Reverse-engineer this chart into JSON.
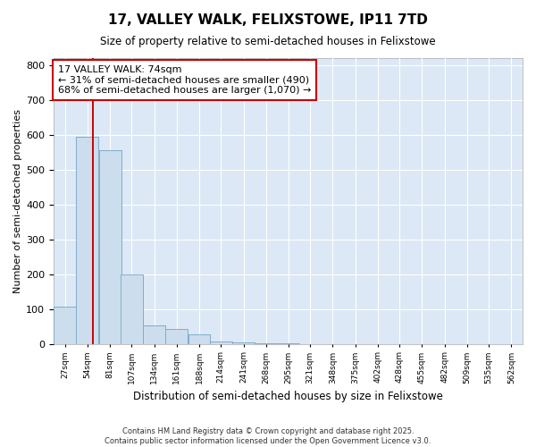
{
  "title": "17, VALLEY WALK, FELIXSTOWE, IP11 7TD",
  "subtitle": "Size of property relative to semi-detached houses in Felixstowe",
  "xlabel": "Distribution of semi-detached houses by size in Felixstowe",
  "ylabel": "Number of semi-detached properties",
  "bar_color": "#ccdded",
  "bar_edge_color": "#7aaac8",
  "background_color": "#dce8f5",
  "grid_color": "#ffffff",
  "fig_background": "#ffffff",
  "ylim": [
    0,
    820
  ],
  "yticks": [
    0,
    100,
    200,
    300,
    400,
    500,
    600,
    700,
    800
  ],
  "bins": [
    27,
    54,
    81,
    107,
    134,
    161,
    188,
    214,
    241,
    268,
    295,
    321,
    348,
    375,
    402,
    428,
    455,
    482,
    509,
    535,
    562
  ],
  "counts": [
    107,
    595,
    557,
    200,
    53,
    42,
    27,
    8,
    5,
    2,
    1,
    0,
    0,
    0,
    0,
    0,
    0,
    0,
    0,
    0
  ],
  "property_size": 74,
  "annotation_text_line1": "17 VALLEY WALK: 74sqm",
  "annotation_text_line2": "← 31% of semi-detached houses are smaller (490)",
  "annotation_text_line3": "68% of semi-detached houses are larger (1,070) →",
  "annotation_box_color": "#ffffff",
  "annotation_box_edge": "#cc0000",
  "red_line_color": "#cc0000",
  "footer_line1": "Contains HM Land Registry data © Crown copyright and database right 2025.",
  "footer_line2": "Contains public sector information licensed under the Open Government Licence v3.0."
}
